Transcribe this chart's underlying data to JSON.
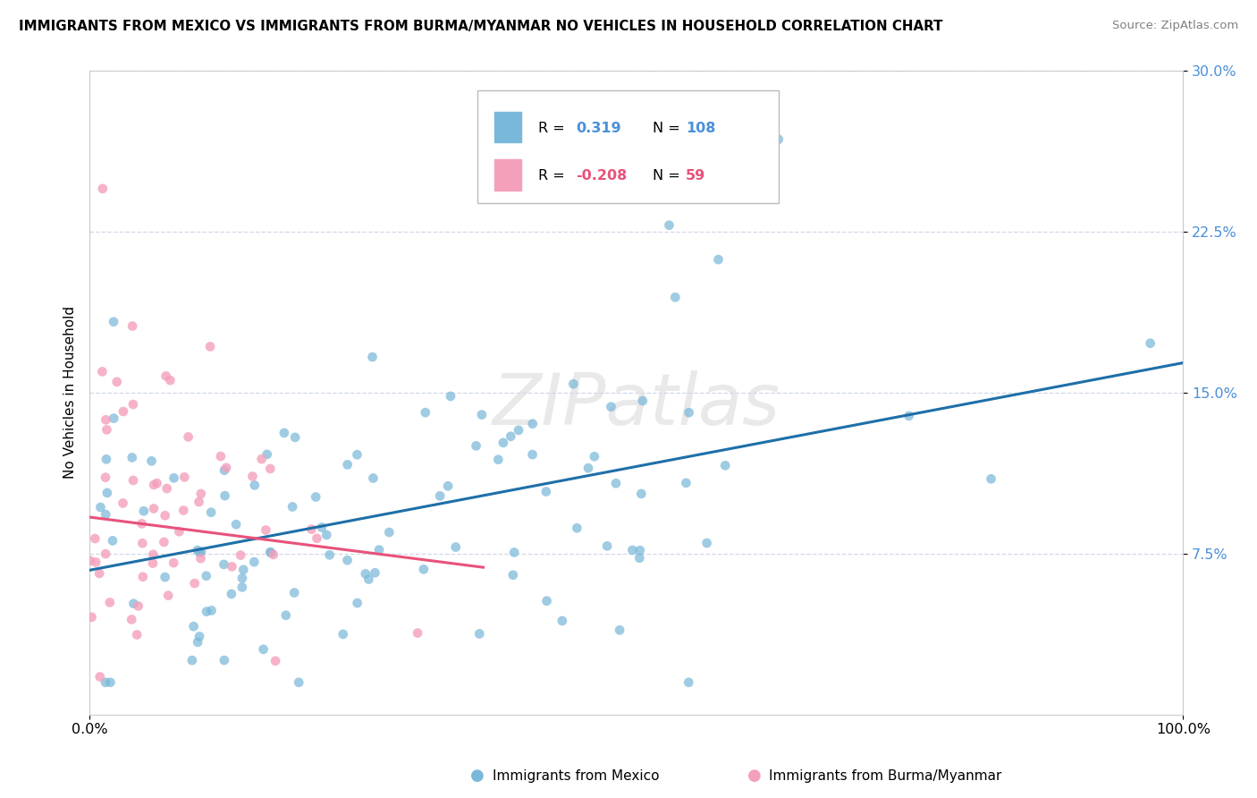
{
  "title": "IMMIGRANTS FROM MEXICO VS IMMIGRANTS FROM BURMA/MYANMAR NO VEHICLES IN HOUSEHOLD CORRELATION CHART",
  "source": "Source: ZipAtlas.com",
  "ylabel": "No Vehicles in Household",
  "xlim": [
    0.0,
    1.0
  ],
  "ylim": [
    0.0,
    0.3
  ],
  "ytick_vals": [
    0.075,
    0.15,
    0.225,
    0.3
  ],
  "ytick_labels": [
    "7.5%",
    "15.0%",
    "22.5%",
    "30.0%"
  ],
  "xtick_vals": [
    0.0,
    1.0
  ],
  "xtick_labels": [
    "0.0%",
    "100.0%"
  ],
  "mexico_color": "#7ab8d9",
  "burma_color": "#f4a0bb",
  "mexico_line_color": "#1e6fa8",
  "burma_line_color": "#e8527a",
  "mexico_R": 0.319,
  "mexico_N": 108,
  "burma_R": -0.208,
  "burma_N": 59,
  "watermark": "ZIPatlas",
  "legend_mexico": "Immigrants from Mexico",
  "legend_burma": "Immigrants from Burma/Myanmar",
  "ytick_color": "#4a90d9",
  "grid_color": "#d0d8e8",
  "spine_color": "#cccccc"
}
